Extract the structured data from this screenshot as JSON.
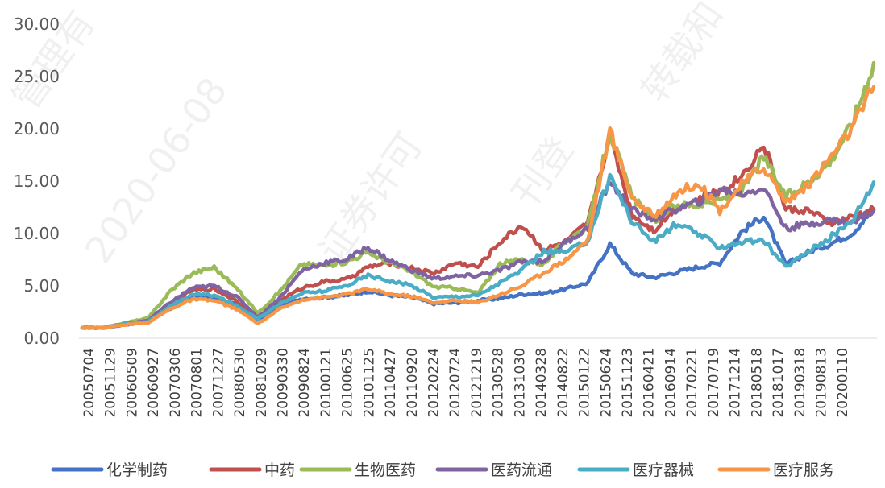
{
  "chart_data": {
    "type": "line",
    "title": "",
    "xlabel": "",
    "ylabel": "",
    "ylim": [
      0,
      30
    ],
    "y_ticks": [
      "0.00",
      "5.00",
      "10.00",
      "15.00",
      "20.00",
      "25.00",
      "30.00"
    ],
    "grid": false,
    "legend_position": "bottom",
    "x_tick_labels": [
      "20050704",
      "20051129",
      "20060509",
      "20060927",
      "20070306",
      "20070801",
      "20071227",
      "20080530",
      "20081029",
      "20090330",
      "20090824",
      "20100121",
      "20100625",
      "20101125",
      "20110427",
      "20110920",
      "20120224",
      "20120724",
      "20121219",
      "20130528",
      "20131030",
      "20140328",
      "20140822",
      "20150122",
      "20150624",
      "20151123",
      "20160421",
      "20160914",
      "20170221",
      "20170719",
      "20171214",
      "20180518",
      "20181017",
      "20190318",
      "20190813",
      "20200110"
    ],
    "x": [
      "20050704",
      "20051129",
      "20060509",
      "20060927",
      "20070306",
      "20070801",
      "20071227",
      "20080530",
      "20081029",
      "20090330",
      "20090824",
      "20100121",
      "20100625",
      "20101125",
      "20110427",
      "20110920",
      "20120224",
      "20120724",
      "20121219",
      "20130528",
      "20131030",
      "20140328",
      "20140822",
      "20150122",
      "20150624",
      "20151123",
      "20160421",
      "20160914",
      "20170221",
      "20170719",
      "20171214",
      "20180518",
      "20181017",
      "20190318",
      "20190813",
      "20200110",
      "20200605"
    ],
    "series": [
      {
        "name": "化学制药",
        "color": "#4472C4",
        "values": [
          1.0,
          1.0,
          1.3,
          1.6,
          2.8,
          4.0,
          3.8,
          3.2,
          1.8,
          3.0,
          3.8,
          3.9,
          4.1,
          4.5,
          4.1,
          3.9,
          3.3,
          3.4,
          3.6,
          3.8,
          4.2,
          4.3,
          4.7,
          5.3,
          9.0,
          6.2,
          5.8,
          6.3,
          6.8,
          7.2,
          10.2,
          11.7,
          7.0,
          8.2,
          9.0,
          10.0,
          12.3
        ]
      },
      {
        "name": "中药",
        "color": "#C0504D",
        "values": [
          1.0,
          1.0,
          1.4,
          1.7,
          3.2,
          4.6,
          4.7,
          3.6,
          1.9,
          3.6,
          4.8,
          5.4,
          5.6,
          6.8,
          7.2,
          6.7,
          6.2,
          7.2,
          6.8,
          9.2,
          10.8,
          8.4,
          9.2,
          11.0,
          19.5,
          11.8,
          10.3,
          12.5,
          13.2,
          14.0,
          15.5,
          18.5,
          12.3,
          12.2,
          11.0,
          11.5,
          12.3
        ]
      },
      {
        "name": "生物医药",
        "color": "#9BBB59",
        "values": [
          1.0,
          1.0,
          1.5,
          1.9,
          4.5,
          6.2,
          6.8,
          4.8,
          2.4,
          4.5,
          7.1,
          6.9,
          7.3,
          8.2,
          7.2,
          6.3,
          4.9,
          4.8,
          4.3,
          7.1,
          7.5,
          7.1,
          9.4,
          10.6,
          19.7,
          13.5,
          11.2,
          12.8,
          12.7,
          13.2,
          14.1,
          17.3,
          13.5,
          14.9,
          16.8,
          20.5,
          26.3
        ]
      },
      {
        "name": "医药流通",
        "color": "#8064A2",
        "values": [
          1.0,
          1.0,
          1.4,
          1.7,
          3.4,
          4.8,
          5.0,
          4.0,
          2.0,
          3.9,
          6.5,
          7.2,
          7.5,
          8.7,
          7.4,
          6.5,
          5.7,
          5.9,
          6.0,
          6.5,
          7.3,
          7.4,
          9.2,
          10.5,
          15.0,
          12.2,
          11.4,
          12.3,
          13.0,
          14.2,
          13.8,
          14.4,
          10.5,
          10.9,
          11.3,
          11.0,
          12.2
        ]
      },
      {
        "name": "医疗器械",
        "color": "#4BACC6",
        "values": [
          1.0,
          1.0,
          1.4,
          1.6,
          3.0,
          4.2,
          4.1,
          3.1,
          1.9,
          3.3,
          4.3,
          4.5,
          5.0,
          6.0,
          5.5,
          5.0,
          3.9,
          4.0,
          4.1,
          5.3,
          6.5,
          8.3,
          8.2,
          9.3,
          15.6,
          11.2,
          9.2,
          10.9,
          10.0,
          8.7,
          9.2,
          9.3,
          6.8,
          8.3,
          9.6,
          11.2,
          14.9
        ]
      },
      {
        "name": "医疗服务",
        "color": "#F79646",
        "values": [
          1.0,
          1.0,
          1.3,
          1.5,
          2.8,
          3.7,
          3.6,
          2.8,
          1.4,
          2.8,
          3.7,
          3.9,
          4.2,
          4.7,
          4.2,
          4.0,
          3.4,
          3.6,
          3.4,
          4.2,
          5.0,
          6.3,
          7.5,
          9.4,
          19.8,
          13.5,
          11.6,
          13.8,
          14.9,
          12.2,
          14.7,
          16.4,
          13.0,
          14.6,
          17.2,
          20.0,
          24.0
        ]
      }
    ]
  },
  "legend": {
    "items": [
      "化学制药",
      "中药",
      "生物医药",
      "医药流通",
      "医疗器械",
      "医疗服务"
    ]
  },
  "watermark": {
    "lines": [
      "2020-06-08",
      "证券许可",
      "刊登",
      "转载和",
      "管理有"
    ]
  }
}
